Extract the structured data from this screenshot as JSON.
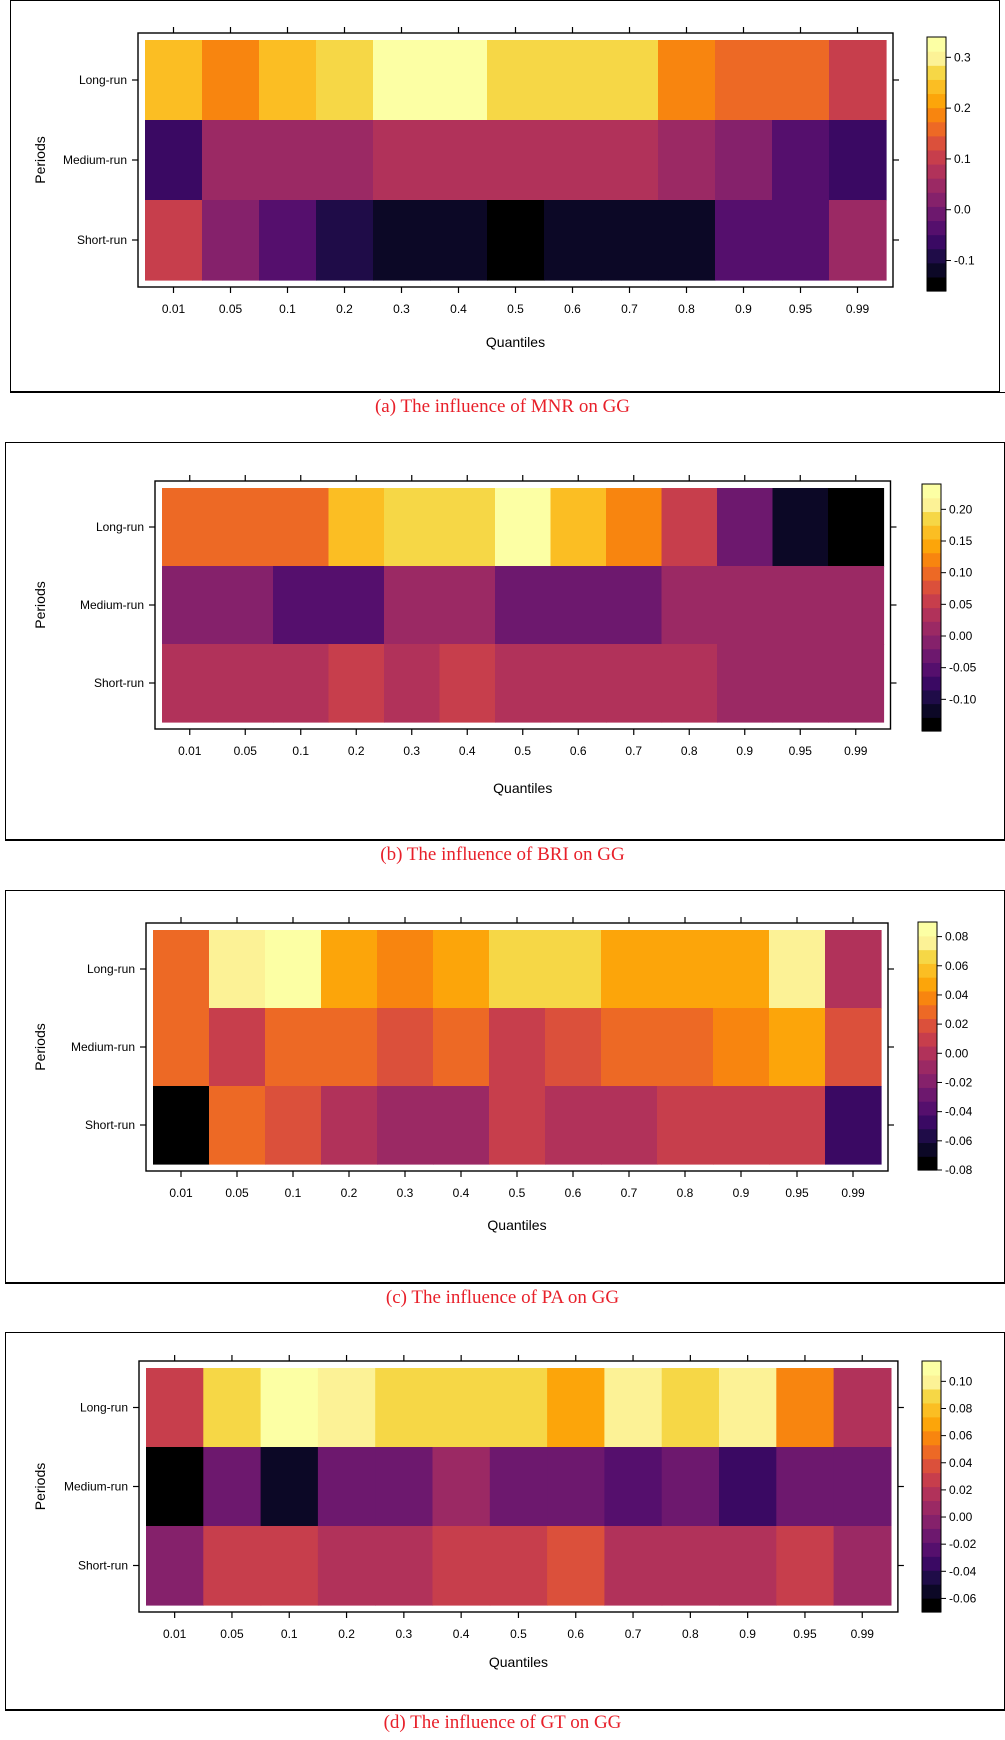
{
  "palette": [
    "#000000",
    "#0c0826",
    "#1f0c48",
    "#3a0963",
    "#550f6d",
    "#6d186e",
    "#85216b",
    "#9b2964",
    "#b1325a",
    "#c73e4c",
    "#db503b",
    "#ed6925",
    "#f8850f",
    "#fca50a",
    "#fbbe23",
    "#f6d746",
    "#fcf296",
    "#fcffa4"
  ],
  "chart_data": [
    {
      "type": "heatmap",
      "caption": "(a) The influence of MNR on GG",
      "xlabel": "Quantiles",
      "ylabel": "Periods",
      "x": [
        "0.01",
        "0.05",
        "0.1",
        "0.2",
        "0.3",
        "0.4",
        "0.5",
        "0.6",
        "0.7",
        "0.8",
        "0.9",
        "0.95",
        "0.99"
      ],
      "y": [
        "Long-run",
        "Medium-run",
        "Short-run"
      ],
      "values": [
        [
          0.23,
          0.19,
          0.23,
          0.27,
          0.32,
          0.32,
          0.27,
          0.27,
          0.27,
          0.19,
          0.17,
          0.15,
          0.1
        ],
        [
          -0.05,
          0.06,
          0.06,
          0.06,
          0.08,
          0.08,
          0.08,
          0.08,
          0.08,
          0.05,
          0.02,
          -0.03,
          -0.06
        ],
        [
          0.11,
          0.02,
          -0.03,
          -0.1,
          -0.13,
          -0.13,
          -0.18,
          -0.13,
          -0.13,
          -0.13,
          -0.03,
          -0.03,
          0.05
        ]
      ],
      "colorbar": {
        "range": [
          -0.16,
          0.34
        ],
        "ticks": [
          -0.1,
          0.0,
          0.1,
          0.2,
          0.3
        ],
        "tick_labels": [
          "-0.1",
          "0.0",
          "0.1",
          "0.2",
          "0.3"
        ]
      }
    },
    {
      "type": "heatmap",
      "caption": "(b) The influence of BRI on GG",
      "xlabel": "Quantiles",
      "ylabel": "Periods",
      "x": [
        "0.01",
        "0.05",
        "0.1",
        "0.2",
        "0.3",
        "0.4",
        "0.5",
        "0.6",
        "0.7",
        "0.8",
        "0.9",
        "0.95",
        "0.99"
      ],
      "y": [
        "Long-run",
        "Medium-run",
        "Short-run"
      ],
      "values": [
        [
          0.095,
          0.095,
          0.095,
          0.155,
          0.195,
          0.195,
          0.225,
          0.175,
          0.125,
          0.065,
          -0.035,
          -0.115,
          -0.14
        ],
        [
          -0.005,
          -0.005,
          -0.045,
          -0.045,
          0.005,
          0.005,
          -0.03,
          -0.03,
          -0.03,
          0.005,
          0.005,
          0.005,
          0.005
        ],
        [
          0.025,
          0.025,
          0.025,
          0.05,
          0.025,
          0.055,
          0.025,
          0.025,
          0.025,
          0.025,
          0.005,
          0.005,
          0.005
        ]
      ],
      "colorbar": {
        "range": [
          -0.15,
          0.24
        ],
        "ticks": [
          -0.1,
          -0.05,
          0.0,
          0.05,
          0.1,
          0.15,
          0.2
        ],
        "tick_labels": [
          "-0.10",
          "-0.05",
          "0.00",
          "0.05",
          "0.10",
          "0.15",
          "0.20"
        ]
      }
    },
    {
      "type": "heatmap",
      "caption": "(c) The influence of PA on GG",
      "xlabel": "Quantiles",
      "ylabel": "Periods",
      "x": [
        "0.01",
        "0.05",
        "0.1",
        "0.2",
        "0.3",
        "0.4",
        "0.5",
        "0.6",
        "0.7",
        "0.8",
        "0.9",
        "0.95",
        "0.99"
      ],
      "y": [
        "Long-run",
        "Medium-run",
        "Short-run"
      ],
      "values": [
        [
          0.032,
          0.072,
          0.082,
          0.052,
          0.042,
          0.052,
          0.062,
          0.062,
          0.052,
          0.052,
          0.052,
          0.072,
          0.002
        ],
        [
          0.032,
          0.012,
          0.032,
          0.032,
          0.022,
          0.032,
          0.012,
          0.022,
          0.032,
          0.032,
          0.042,
          0.052,
          0.022
        ],
        [
          -0.08,
          0.032,
          0.022,
          0.002,
          -0.008,
          -0.008,
          0.012,
          0.002,
          0.002,
          0.012,
          0.012,
          0.012,
          -0.048
        ]
      ],
      "colorbar": {
        "range": [
          -0.08,
          0.09
        ],
        "ticks": [
          -0.08,
          -0.06,
          -0.04,
          -0.02,
          0.0,
          0.02,
          0.04,
          0.06,
          0.08
        ],
        "tick_labels": [
          "-0.08",
          "-0.06",
          "-0.04",
          "-0.02",
          "0.00",
          "0.02",
          "0.04",
          "0.06",
          "0.08"
        ]
      }
    },
    {
      "type": "heatmap",
      "caption": "(d) The influence of GT on GG",
      "xlabel": "Quantiles",
      "ylabel": "Periods",
      "x": [
        "0.01",
        "0.05",
        "0.1",
        "0.2",
        "0.3",
        "0.4",
        "0.5",
        "0.6",
        "0.7",
        "0.8",
        "0.9",
        "0.95",
        "0.99"
      ],
      "y": [
        "Long-run",
        "Medium-run",
        "Short-run"
      ],
      "values": [
        [
          0.025,
          0.085,
          0.11,
          0.095,
          0.085,
          0.085,
          0.085,
          0.065,
          0.095,
          0.085,
          0.095,
          0.055,
          0.015
        ],
        [
          -0.07,
          -0.015,
          -0.055,
          -0.015,
          -0.015,
          0.005,
          -0.015,
          -0.015,
          -0.025,
          -0.015,
          -0.035,
          -0.015,
          -0.015
        ],
        [
          -0.005,
          0.025,
          0.025,
          0.015,
          0.015,
          0.025,
          0.025,
          0.035,
          0.015,
          0.015,
          0.015,
          0.025,
          0.005
        ]
      ],
      "colorbar": {
        "range": [
          -0.07,
          0.115
        ],
        "ticks": [
          -0.06,
          -0.04,
          -0.02,
          0.0,
          0.02,
          0.04,
          0.06,
          0.08,
          0.1
        ],
        "tick_labels": [
          "-0.06",
          "-0.04",
          "-0.02",
          "0.00",
          "0.02",
          "0.04",
          "0.06",
          "0.08",
          "0.10"
        ]
      }
    }
  ]
}
